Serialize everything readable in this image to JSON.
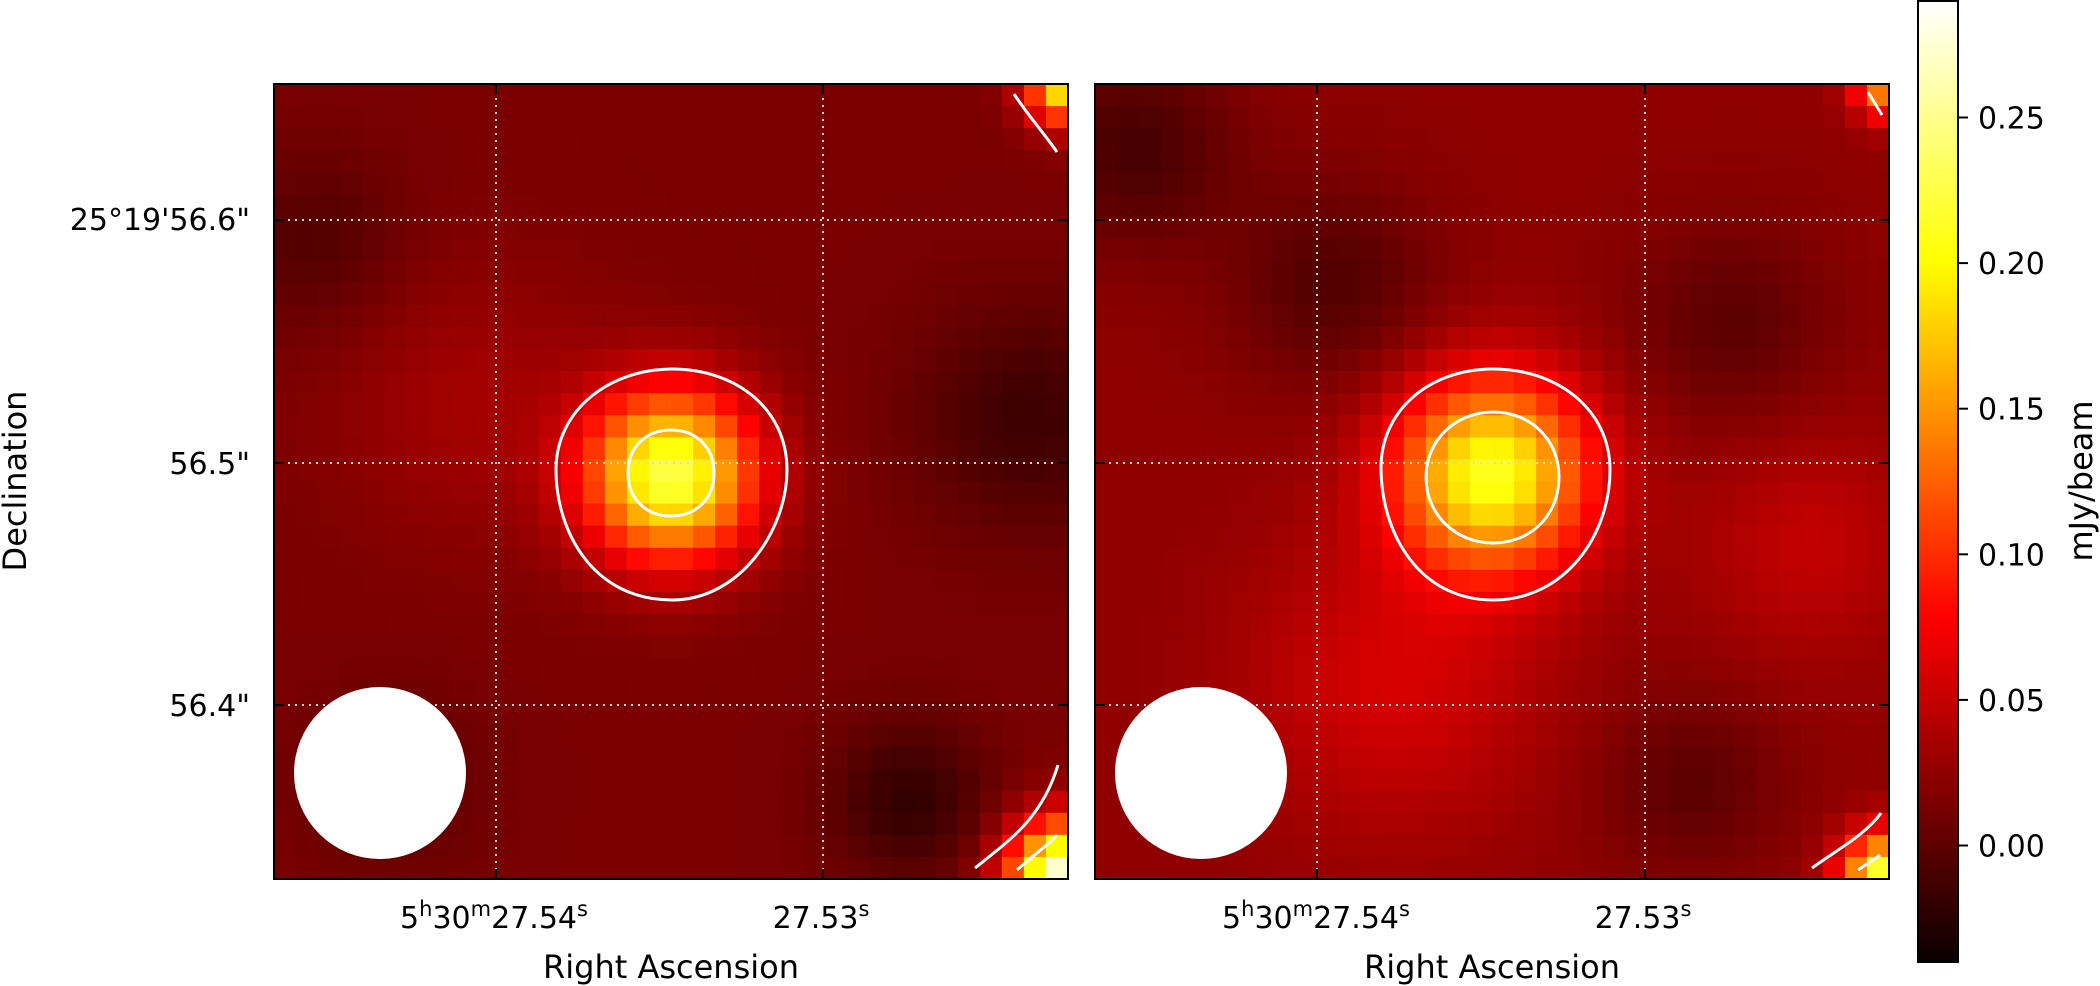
{
  "chart_data": [
    {
      "type": "heatmap",
      "xlabel": "Right Ascension",
      "ylabel": "Declination",
      "x_ticks": [
        {
          "h": "5",
          "m": "30",
          "s": "27.54"
        },
        {
          "h": "",
          "m": "",
          "s": "27.53"
        }
      ],
      "y_ticks": [
        "25°19'56.6\"",
        "56.5\"",
        "56.4\""
      ],
      "grid": true,
      "beam": "circular, lower-left",
      "peak_flux": 0.22,
      "contour_levels_note": "2 contours around central source",
      "colormap": "hot",
      "vmin": -0.04,
      "vmax": 0.29
    },
    {
      "type": "heatmap",
      "xlabel": "Right Ascension",
      "ylabel": "",
      "x_ticks": [
        {
          "h": "5",
          "m": "30",
          "s": "27.54"
        },
        {
          "h": "",
          "m": "",
          "s": "27.53"
        }
      ],
      "y_ticks": [],
      "grid": true,
      "beam": "circular, lower-left",
      "peak_flux": 0.2,
      "colormap": "hot",
      "vmin": -0.04,
      "vmax": 0.29
    }
  ],
  "colorbar": {
    "label": "mJy/beam",
    "ticks": [
      "0.00",
      "0.05",
      "0.10",
      "0.15",
      "0.20",
      "0.25"
    ],
    "tick_values": [
      0.0,
      0.05,
      0.1,
      0.15,
      0.2,
      0.25
    ],
    "vmin": -0.04,
    "vmax": 0.29
  }
}
